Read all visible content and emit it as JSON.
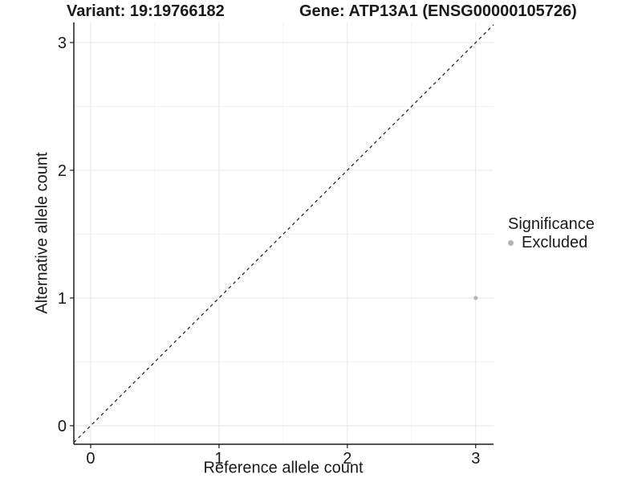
{
  "titles": {
    "variant": "Variant: 19:19766182",
    "gene": "Gene: ATP13A1 (ENSG00000105726)"
  },
  "chart_data": {
    "type": "scatter",
    "title_left": "Variant: 19:19766182",
    "title_right": "Gene: ATP13A1 (ENSG00000105726)",
    "xlabel": "Reference allele count",
    "ylabel": "Alternative allele count",
    "xlim": [
      -0.131,
      3.139
    ],
    "ylim": [
      -0.145,
      3.157
    ],
    "xticks": [
      0,
      1,
      2,
      3
    ],
    "yticks": [
      0,
      1,
      2,
      3
    ],
    "minor_xticks": [
      0.5,
      1.5,
      2.5
    ],
    "minor_yticks": [
      0.5,
      1.5,
      2.5
    ],
    "grid": true,
    "points": [
      {
        "x": 3,
        "y": 1,
        "series": "Excluded"
      }
    ],
    "reference_line": {
      "slope": 1,
      "intercept": 0,
      "style": "dashed",
      "color": "#1a1a1a"
    },
    "legend": {
      "title": "Significance",
      "position": "right",
      "entries": [
        {
          "label": "Excluded",
          "color": "#b3b3b3",
          "marker": "circle"
        }
      ]
    },
    "colors": {
      "point": "#b3b3b3",
      "grid_major": "#e5e5e5",
      "grid_minor": "#f3f3f3",
      "axis": "#1a1a1a",
      "background": "#ffffff"
    }
  }
}
